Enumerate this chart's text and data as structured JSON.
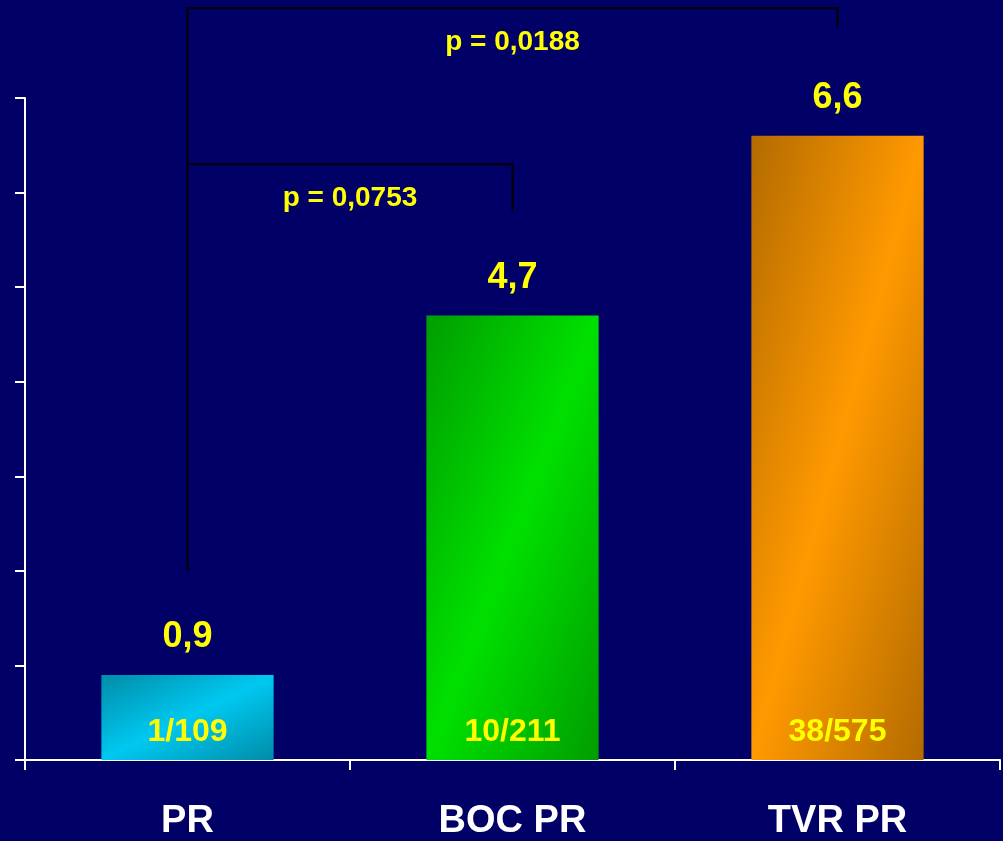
{
  "chart_data": {
    "type": "bar",
    "categories": [
      "PR",
      "BOC PR",
      "TVR PR"
    ],
    "values": [
      0.9,
      4.7,
      6.6
    ],
    "colors": [
      "#00c8f0",
      "#00e000",
      "#ff9900"
    ],
    "value_labels": [
      "0,9",
      "4,7",
      "6,6"
    ],
    "annotations": [
      "1/109",
      "10/211",
      "38/575",
      "p = 0,0753",
      "p = 0,0188"
    ]
  }
}
